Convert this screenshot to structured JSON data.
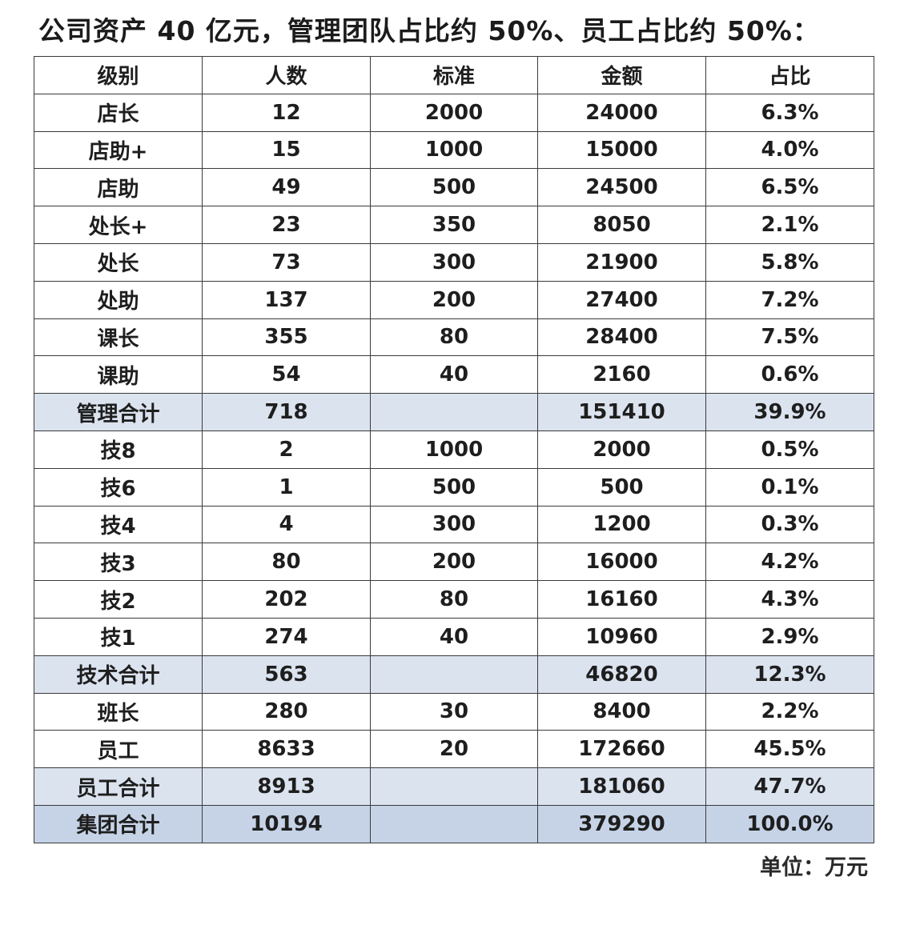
{
  "title": "公司资产 40 亿元，管理团队占比约 50%、员工占比约 50%：",
  "table": {
    "headers": [
      "级别",
      "人数",
      "标准",
      "金额",
      "占比"
    ],
    "rows": [
      {
        "type": "normal",
        "cells": [
          "店长",
          "12",
          "2000",
          "24000",
          "6.3%"
        ]
      },
      {
        "type": "normal",
        "cells": [
          "店助+",
          "15",
          "1000",
          "15000",
          "4.0%"
        ]
      },
      {
        "type": "normal",
        "cells": [
          "店助",
          "49",
          "500",
          "24500",
          "6.5%"
        ]
      },
      {
        "type": "normal",
        "cells": [
          "处长+",
          "23",
          "350",
          "8050",
          "2.1%"
        ]
      },
      {
        "type": "normal",
        "cells": [
          "处长",
          "73",
          "300",
          "21900",
          "5.8%"
        ]
      },
      {
        "type": "normal",
        "cells": [
          "处助",
          "137",
          "200",
          "27400",
          "7.2%"
        ]
      },
      {
        "type": "normal",
        "cells": [
          "课长",
          "355",
          "80",
          "28400",
          "7.5%"
        ]
      },
      {
        "type": "normal",
        "cells": [
          "课助",
          "54",
          "40",
          "2160",
          "0.6%"
        ]
      },
      {
        "type": "subtotal",
        "cells": [
          "管理合计",
          "718",
          "",
          "151410",
          "39.9%"
        ]
      },
      {
        "type": "normal",
        "cells": [
          "技8",
          "2",
          "1000",
          "2000",
          "0.5%"
        ]
      },
      {
        "type": "normal",
        "cells": [
          "技6",
          "1",
          "500",
          "500",
          "0.1%"
        ]
      },
      {
        "type": "normal",
        "cells": [
          "技4",
          "4",
          "300",
          "1200",
          "0.3%"
        ]
      },
      {
        "type": "normal",
        "cells": [
          "技3",
          "80",
          "200",
          "16000",
          "4.2%"
        ]
      },
      {
        "type": "normal",
        "cells": [
          "技2",
          "202",
          "80",
          "16160",
          "4.3%"
        ]
      },
      {
        "type": "normal",
        "cells": [
          "技1",
          "274",
          "40",
          "10960",
          "2.9%"
        ]
      },
      {
        "type": "subtotal",
        "cells": [
          "技术合计",
          "563",
          "",
          "46820",
          "12.3%"
        ]
      },
      {
        "type": "normal",
        "cells": [
          "班长",
          "280",
          "30",
          "8400",
          "2.2%"
        ]
      },
      {
        "type": "normal",
        "cells": [
          "员工",
          "8633",
          "20",
          "172660",
          "45.5%"
        ]
      },
      {
        "type": "subtotal",
        "cells": [
          "员工合计",
          "8913",
          "",
          "181060",
          "47.7%"
        ]
      },
      {
        "type": "grand",
        "cells": [
          "集团合计",
          "10194",
          "",
          "379290",
          "100.0%"
        ]
      }
    ]
  },
  "unit_note": "单位：万元",
  "colors": {
    "subtotal_bg": "#dbe3ef",
    "grand_bg": "#c6d3e7",
    "border": "#3a3a3a"
  }
}
